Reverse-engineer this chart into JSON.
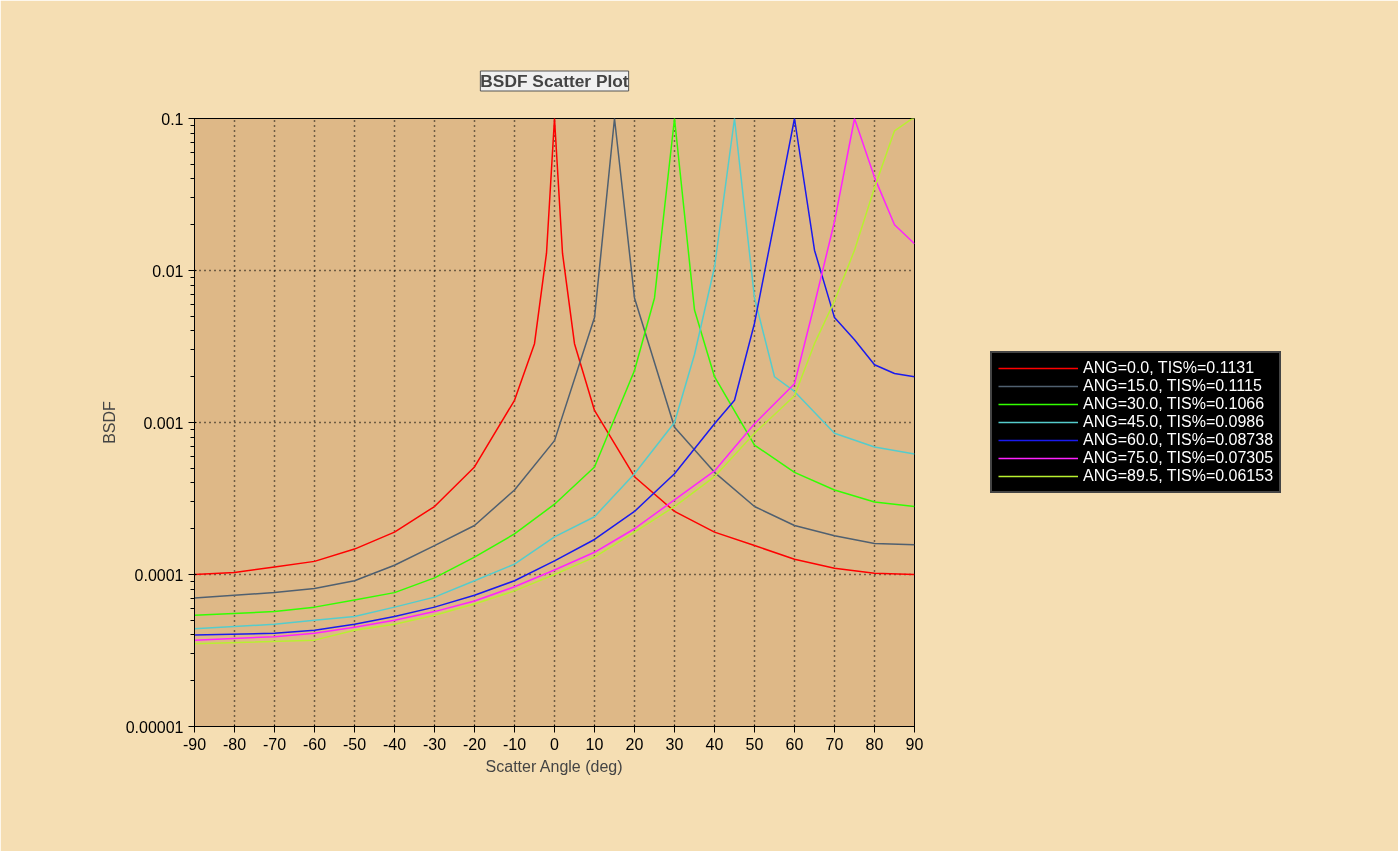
{
  "chart_data": {
    "type": "line",
    "title": "BSDF Scatter Plot",
    "xlabel": "Scatter Angle (deg)",
    "ylabel": "BSDF",
    "log": "y",
    "grid": true,
    "legend": "right",
    "marker": "none",
    "line_style": "solid",
    "xlim": [
      -90,
      90
    ],
    "xticks": [
      -90,
      -80,
      -70,
      -60,
      -50,
      -40,
      -30,
      -20,
      -10,
      0,
      10,
      20,
      30,
      40,
      50,
      60,
      70,
      80,
      90
    ],
    "ylim": [
      1e-05,
      0.1
    ],
    "yticks": [
      {
        "value": 1e-05,
        "label": "0.00001"
      },
      0.0001,
      0.001,
      0.01,
      0.1
    ],
    "series": [
      {
        "name": "ANG=0.0, TIS%=0.1131",
        "color": "#ff0000",
        "x": [
          -90,
          -80,
          -70,
          -60,
          -50,
          -40,
          -30,
          -20,
          -10,
          -5,
          -2,
          0,
          2,
          5,
          10,
          20,
          30,
          40,
          50,
          60,
          70,
          80,
          90
        ],
        "values": [
          0.0001,
          0.000103,
          0.000112,
          0.000122,
          0.000147,
          0.00019,
          0.00028,
          0.00051,
          0.0014,
          0.0033,
          0.013,
          0.1,
          0.013,
          0.0033,
          0.0012,
          0.00044,
          0.00026,
          0.00019,
          0.000155,
          0.000126,
          0.00011,
          0.000102,
          0.0001
        ]
      },
      {
        "name": "ANG=15.0, TIS%=0.1115",
        "color": "#506070",
        "x": [
          -90,
          -70,
          -60,
          -50,
          -40,
          -30,
          -20,
          -10,
          0,
          10,
          15,
          20,
          30,
          40,
          50,
          60,
          70,
          80,
          90
        ],
        "values": [
          7e-05,
          7.6e-05,
          8.1e-05,
          9.1e-05,
          0.000115,
          0.000155,
          0.00021,
          0.00036,
          0.00076,
          0.0049,
          0.1,
          0.0066,
          0.00093,
          0.00047,
          0.00028,
          0.00021,
          0.00018,
          0.00016,
          0.000157
        ]
      },
      {
        "name": "ANG=30.0, TIS%=0.1066",
        "color": "#33ff00",
        "x": [
          -90,
          -70,
          -60,
          -50,
          -40,
          -30,
          -20,
          -10,
          0,
          10,
          20,
          25,
          30,
          35,
          40,
          50,
          60,
          70,
          80,
          90
        ],
        "values": [
          5.4e-05,
          5.7e-05,
          6.1e-05,
          6.8e-05,
          7.6e-05,
          9.5e-05,
          0.00013,
          0.000185,
          0.00029,
          0.00051,
          0.0022,
          0.0066,
          0.1,
          0.0055,
          0.002,
          0.00071,
          0.00047,
          0.00036,
          0.0003,
          0.00028
        ]
      },
      {
        "name": "ANG=45.0, TIS%=0.0986",
        "color": "#55cccc",
        "x": [
          -90,
          -70,
          -60,
          -50,
          -40,
          -30,
          -20,
          -10,
          0,
          10,
          20,
          30,
          35,
          40,
          45,
          50,
          55,
          60,
          70,
          80,
          90
        ],
        "values": [
          4.4e-05,
          4.7e-05,
          5e-05,
          5.3e-05,
          6.1e-05,
          7.1e-05,
          9.1e-05,
          0.000117,
          0.000177,
          0.00024,
          0.00046,
          0.001,
          0.0028,
          0.0105,
          0.1,
          0.0066,
          0.002,
          0.0016,
          0.00085,
          0.00069,
          0.00062
        ]
      },
      {
        "name": "ANG=60.0, TIS%=0.08738",
        "color": "#1a1aee",
        "x": [
          -90,
          -70,
          -60,
          -50,
          -40,
          -30,
          -20,
          -10,
          0,
          10,
          20,
          30,
          40,
          45,
          50,
          55,
          60,
          65,
          70,
          75,
          80,
          85,
          90
        ],
        "values": [
          4e-05,
          4.1e-05,
          4.3e-05,
          4.7e-05,
          5.3e-05,
          6.1e-05,
          7.3e-05,
          9.1e-05,
          0.000123,
          0.00017,
          0.00026,
          0.00046,
          0.00098,
          0.0014,
          0.0045,
          0.021,
          0.1,
          0.0136,
          0.0049,
          0.0035,
          0.0024,
          0.0021,
          0.002
        ]
      },
      {
        "name": "ANG=75.0, TIS%=0.07305",
        "color": "#ff22ff",
        "x": [
          -90,
          -70,
          -60,
          -50,
          -40,
          -30,
          -20,
          -10,
          0,
          10,
          20,
          30,
          40,
          50,
          60,
          65,
          70,
          75,
          80,
          85,
          90
        ],
        "values": [
          3.7e-05,
          3.9e-05,
          4.1e-05,
          4.5e-05,
          5e-05,
          5.7e-05,
          6.7e-05,
          8.3e-05,
          0.000107,
          0.00014,
          0.0002,
          0.00031,
          0.00048,
          0.00098,
          0.0018,
          0.006,
          0.021,
          0.1,
          0.041,
          0.02,
          0.015
        ]
      },
      {
        "name": "ANG=89.5, TIS%=0.06153",
        "color": "#b8f030",
        "x": [
          -90,
          -60,
          -50,
          -40,
          -30,
          -20,
          -10,
          0,
          10,
          20,
          30,
          40,
          50,
          60,
          65,
          70,
          75,
          80,
          85,
          89.5,
          90
        ],
        "values": [
          3.5e-05,
          3.7e-05,
          4.3e-05,
          4.7e-05,
          5.4e-05,
          6.4e-05,
          7.8e-05,
          0.0001,
          0.00013,
          0.00019,
          0.00028,
          0.00044,
          0.00085,
          0.0015,
          0.0033,
          0.0063,
          0.0136,
          0.035,
          0.083,
          0.1,
          0.1
        ]
      }
    ]
  }
}
